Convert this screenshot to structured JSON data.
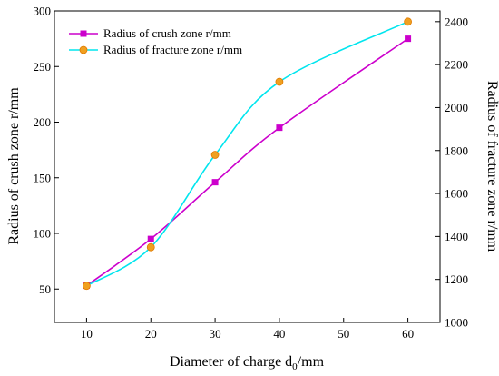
{
  "chart_data": {
    "type": "line",
    "xlabel_main": "Diameter of charge d",
    "xlabel_sub": "0",
    "xlabel_unit": "/mm",
    "ylabel_left": "Radius of crush zone r/mm",
    "ylabel_right": "Radius of fracture zone r/mm",
    "xlim": [
      5,
      65
    ],
    "ylim_left": [
      20,
      300
    ],
    "ylim_right": [
      1000,
      2450
    ],
    "x_ticks": [
      10,
      20,
      30,
      40,
      50,
      60
    ],
    "y_left_ticks": [
      50,
      100,
      150,
      200,
      250,
      300
    ],
    "y_right_ticks": [
      1000,
      1200,
      1400,
      1600,
      1800,
      2000,
      2200,
      2400
    ],
    "grid": false,
    "legend_position": "top-left",
    "series": [
      {
        "name": "Radius of crush zone r/mm",
        "axis": "left",
        "color": "#cc00cc",
        "marker": "square",
        "x": [
          10,
          20,
          30,
          40,
          60
        ],
        "y": [
          53,
          95,
          146,
          195,
          275
        ]
      },
      {
        "name": "Radius of fracture zone r/mm",
        "axis": "right",
        "color": "#00e5ee",
        "marker": "circle",
        "marker_color": "#f0a020",
        "x": [
          10,
          20,
          30,
          40,
          60
        ],
        "y": [
          1170,
          1350,
          1780,
          2120,
          2400
        ]
      }
    ]
  }
}
